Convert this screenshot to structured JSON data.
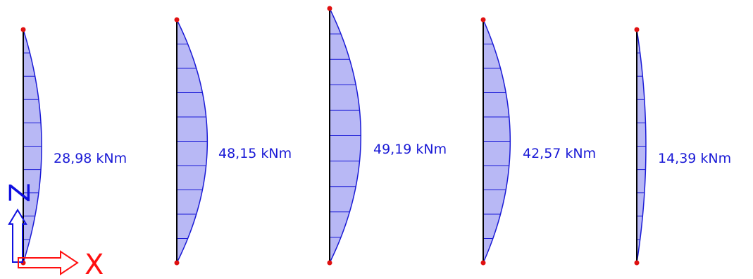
{
  "members": [
    {
      "moment_label": "28,98 kNm",
      "max_moment": 28.98
    },
    {
      "moment_label": "48,15 kNm",
      "max_moment": 48.15
    },
    {
      "moment_label": "49,19 kNm",
      "max_moment": 49.19
    },
    {
      "moment_label": "42,57 kNm",
      "max_moment": 42.57
    },
    {
      "moment_label": "14,39 kNm",
      "max_moment": 14.39
    }
  ],
  "axes": {
    "x_label": "X",
    "z_label": "Z"
  },
  "colors": {
    "member_line": "#000000",
    "diagram_fill": "#b8b8f5",
    "diagram_outline": "#1a1ad6",
    "node": "#e01010",
    "label_text": "#1a1ad6",
    "x_axis": "#ff1010",
    "z_axis": "#1010e0"
  }
}
